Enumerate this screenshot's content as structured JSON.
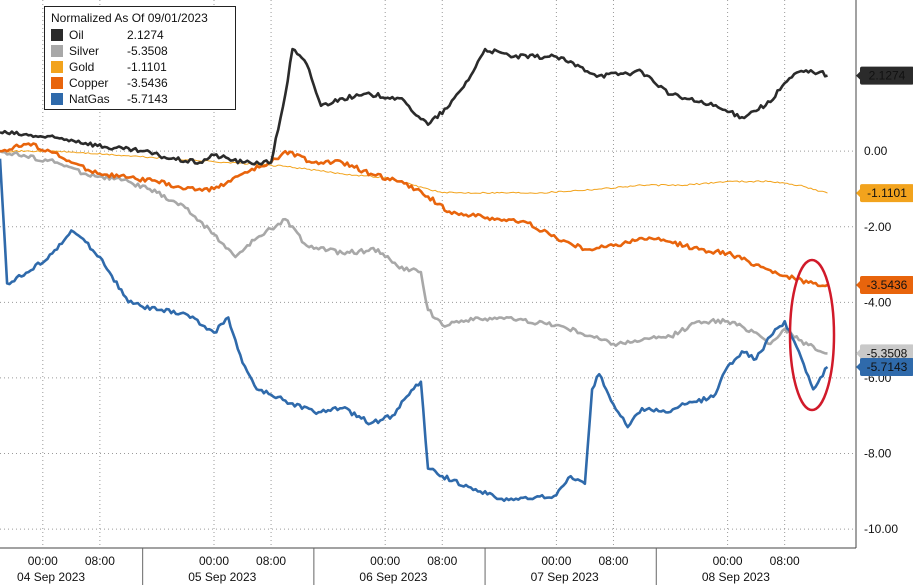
{
  "chart_data": {
    "type": "line",
    "title": "Normalized As Of 09/01/2023",
    "x_label_times": [
      "00:00",
      "08:00"
    ],
    "x_dates": [
      "04 Sep 2023",
      "05 Sep 2023",
      "06 Sep 2023",
      "07 Sep 2023",
      "08 Sep 2023"
    ],
    "yticks": [
      "0.00",
      "-2.00",
      "-4.00",
      "-6.00",
      "-8.00",
      "-10.00"
    ],
    "ylim": [
      -10.5,
      4.0
    ],
    "grid": true,
    "legend_position": "top-left",
    "series": [
      {
        "name": "Oil",
        "last_label": "2.1274",
        "legend_value": "2.1274",
        "color": "#2b2b2b",
        "points": [
          [
            0,
            0.5
          ],
          [
            5,
            0.4
          ],
          [
            10,
            0.3
          ],
          [
            15,
            0.1
          ],
          [
            20,
            0.0
          ],
          [
            24,
            -0.2
          ],
          [
            28,
            -0.3
          ],
          [
            30,
            -0.1
          ],
          [
            34,
            -0.3
          ],
          [
            38,
            -0.3
          ],
          [
            40,
            1.5
          ],
          [
            41,
            2.7
          ],
          [
            43,
            2.3
          ],
          [
            45,
            1.2
          ],
          [
            48,
            1.4
          ],
          [
            52,
            1.5
          ],
          [
            56,
            1.4
          ],
          [
            60,
            0.7
          ],
          [
            63,
            1.2
          ],
          [
            66,
            2.0
          ],
          [
            68,
            2.7
          ],
          [
            72,
            2.5
          ],
          [
            78,
            2.5
          ],
          [
            84,
            2.0
          ],
          [
            90,
            2.1
          ],
          [
            94,
            1.5
          ],
          [
            96,
            1.4
          ],
          [
            100,
            1.2
          ],
          [
            104,
            0.9
          ],
          [
            108,
            1.3
          ],
          [
            110,
            1.8
          ],
          [
            112,
            2.1
          ],
          [
            115,
            2.1
          ],
          [
            116,
            2.0
          ]
        ]
      },
      {
        "name": "Silver",
        "last_label": "-5.3508",
        "legend_value": "-5.3508",
        "color": "#a8a8a8",
        "points": [
          [
            0,
            0.0
          ],
          [
            8,
            -0.3
          ],
          [
            12,
            -0.6
          ],
          [
            18,
            -0.8
          ],
          [
            22,
            -1.1
          ],
          [
            26,
            -1.5
          ],
          [
            30,
            -2.2
          ],
          [
            33,
            -2.8
          ],
          [
            36,
            -2.3
          ],
          [
            40,
            -1.8
          ],
          [
            43,
            -2.5
          ],
          [
            48,
            -2.7
          ],
          [
            53,
            -2.6
          ],
          [
            56,
            -3.1
          ],
          [
            59,
            -3.2
          ],
          [
            60,
            -4.2
          ],
          [
            62,
            -4.6
          ],
          [
            64,
            -4.5
          ],
          [
            70,
            -4.4
          ],
          [
            78,
            -4.6
          ],
          [
            83,
            -4.9
          ],
          [
            86,
            -5.1
          ],
          [
            90,
            -5.0
          ],
          [
            94,
            -4.9
          ],
          [
            98,
            -4.5
          ],
          [
            102,
            -4.5
          ],
          [
            106,
            -4.8
          ],
          [
            108,
            -5.1
          ],
          [
            110,
            -4.7
          ],
          [
            112,
            -5.0
          ],
          [
            116,
            -5.35
          ]
        ]
      },
      {
        "name": "Gold",
        "last_label": "-1.1101",
        "legend_value": "-1.1101",
        "color": "#f2a31d",
        "points": [
          [
            0,
            0.0
          ],
          [
            8,
            0.0
          ],
          [
            16,
            -0.1
          ],
          [
            24,
            -0.2
          ],
          [
            32,
            -0.3
          ],
          [
            40,
            -0.4
          ],
          [
            48,
            -0.6
          ],
          [
            54,
            -0.7
          ],
          [
            58,
            -0.9
          ],
          [
            62,
            -1.1
          ],
          [
            68,
            -1.1
          ],
          [
            76,
            -1.1
          ],
          [
            84,
            -1.0
          ],
          [
            90,
            -0.9
          ],
          [
            96,
            -0.9
          ],
          [
            102,
            -0.8
          ],
          [
            108,
            -0.8
          ],
          [
            112,
            -0.9
          ],
          [
            116,
            -1.11
          ]
        ]
      },
      {
        "name": "Copper",
        "last_label": "-3.5436",
        "legend_value": "-3.5436",
        "color": "#e8640c",
        "points": [
          [
            0,
            0.0
          ],
          [
            4,
            0.2
          ],
          [
            7,
            0.0
          ],
          [
            10,
            -0.3
          ],
          [
            14,
            -0.6
          ],
          [
            18,
            -0.7
          ],
          [
            22,
            -0.8
          ],
          [
            26,
            -1.0
          ],
          [
            30,
            -1.0
          ],
          [
            34,
            -0.6
          ],
          [
            38,
            -0.3
          ],
          [
            40,
            0.0
          ],
          [
            44,
            -0.3
          ],
          [
            48,
            -0.3
          ],
          [
            52,
            -0.6
          ],
          [
            56,
            -0.8
          ],
          [
            60,
            -1.2
          ],
          [
            63,
            -1.6
          ],
          [
            66,
            -1.7
          ],
          [
            70,
            -1.8
          ],
          [
            74,
            -1.9
          ],
          [
            78,
            -2.3
          ],
          [
            82,
            -2.6
          ],
          [
            86,
            -2.5
          ],
          [
            90,
            -2.3
          ],
          [
            94,
            -2.4
          ],
          [
            98,
            -2.6
          ],
          [
            102,
            -2.7
          ],
          [
            106,
            -3.0
          ],
          [
            110,
            -3.3
          ],
          [
            114,
            -3.5
          ],
          [
            116,
            -3.54
          ]
        ]
      },
      {
        "name": "NatGas",
        "last_label": "-5.7143",
        "legend_value": "-5.7143",
        "color": "#2f6aab",
        "points": [
          [
            0,
            -0.2
          ],
          [
            1,
            -3.5
          ],
          [
            4,
            -3.2
          ],
          [
            8,
            -2.6
          ],
          [
            10,
            -2.1
          ],
          [
            12,
            -2.4
          ],
          [
            14,
            -2.8
          ],
          [
            18,
            -4.0
          ],
          [
            22,
            -4.2
          ],
          [
            26,
            -4.3
          ],
          [
            30,
            -4.8
          ],
          [
            32,
            -4.4
          ],
          [
            34,
            -5.6
          ],
          [
            36,
            -6.3
          ],
          [
            40,
            -6.6
          ],
          [
            44,
            -6.9
          ],
          [
            48,
            -6.8
          ],
          [
            52,
            -7.2
          ],
          [
            55,
            -7.0
          ],
          [
            57,
            -6.5
          ],
          [
            59,
            -6.1
          ],
          [
            60,
            -8.4
          ],
          [
            62,
            -8.6
          ],
          [
            66,
            -8.9
          ],
          [
            70,
            -9.2
          ],
          [
            74,
            -9.2
          ],
          [
            78,
            -9.1
          ],
          [
            80,
            -8.6
          ],
          [
            82,
            -8.8
          ],
          [
            83,
            -6.3
          ],
          [
            84,
            -5.9
          ],
          [
            86,
            -6.7
          ],
          [
            88,
            -7.3
          ],
          [
            90,
            -6.8
          ],
          [
            94,
            -6.9
          ],
          [
            96,
            -6.7
          ],
          [
            100,
            -6.5
          ],
          [
            102,
            -5.7
          ],
          [
            104,
            -5.3
          ],
          [
            106,
            -5.5
          ],
          [
            108,
            -4.9
          ],
          [
            110,
            -4.5
          ],
          [
            112,
            -5.3
          ],
          [
            114,
            -6.3
          ],
          [
            116,
            -5.71
          ]
        ]
      }
    ],
    "label_boxes": {
      "Oil": {
        "bg": "#2b2b2b",
        "fg": "#ffffff"
      },
      "Gold": {
        "bg": "#f2a31d",
        "fg": "#111111"
      },
      "Copper": {
        "bg": "#e8640c",
        "fg": "#111111"
      },
      "Silver": {
        "bg": "#c9c9c9",
        "fg": "#111111"
      },
      "NatGas": {
        "bg": "#2f6aab",
        "fg": "#ffffff"
      }
    },
    "annotation_color": "#d11a2a"
  }
}
